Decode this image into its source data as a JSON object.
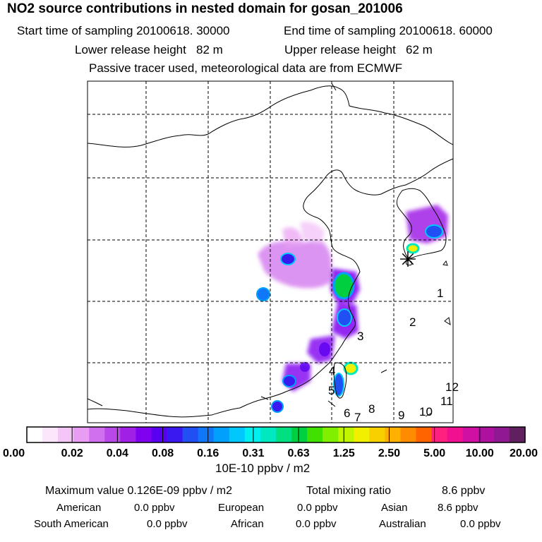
{
  "header": {
    "title": "NO2 source contributions in nested domain for gosan_201006",
    "start_label": "Start time of sampling 20100618. 30000",
    "end_label": "End time of sampling 20100618. 60000",
    "lower_label": "Lower release height   82 m",
    "upper_label": "Upper release height   62 m",
    "tracer_label": "Passive tracer used, meteorological data are from ECMWF"
  },
  "chart_data": {
    "type": "heatmap",
    "title": "NO2 source contributions in nested domain for gosan_201006",
    "grid": true,
    "colorbar_ticks": [
      "0.00",
      "0.02",
      "0.04",
      "0.08",
      "0.16",
      "0.31",
      "0.63",
      "1.25",
      "2.50",
      "5.00",
      "10.00",
      "20.00"
    ],
    "colorbar_colors": [
      "#ffffff",
      "#fce6fc",
      "#f4c6f8",
      "#e89cf2",
      "#d070ee",
      "#b848e8",
      "#a020e6",
      "#8000f0",
      "#5a00f0",
      "#3a18f0",
      "#2050f4",
      "#1078f8",
      "#00a0fc",
      "#00c8fc",
      "#00f0f0",
      "#00e8c0",
      "#00e080",
      "#00d040",
      "#40e000",
      "#80f000",
      "#c0f400",
      "#f0f000",
      "#f8d000",
      "#ffb000",
      "#ff8c00",
      "#ff6400",
      "#ff2080",
      "#f01090",
      "#d010a0",
      "#b010a0",
      "#901890",
      "#602060"
    ],
    "unit_label": "10E-10 ppbv / m2",
    "region_labels": [
      "1",
      "2",
      "3",
      "4",
      "5",
      "6",
      "7",
      "8",
      "9",
      "10",
      "11",
      "12"
    ],
    "receptor_symbol": "✳"
  },
  "stats": {
    "max_label": "Maximum value  0.126E-09 ppbv / m2",
    "total_label": "Total mixing ratio",
    "total_value": "8.6 ppbv",
    "rows": [
      {
        "name": "American",
        "value": "0.0 ppbv"
      },
      {
        "name": "European",
        "value": "0.0 ppbv"
      },
      {
        "name": "Asian",
        "value": "8.6 ppbv"
      },
      {
        "name": "South American",
        "value": "0.0 ppbv"
      },
      {
        "name": "African",
        "value": "0.0 ppbv"
      },
      {
        "name": "Australian",
        "value": "0.0 ppbv"
      }
    ]
  }
}
